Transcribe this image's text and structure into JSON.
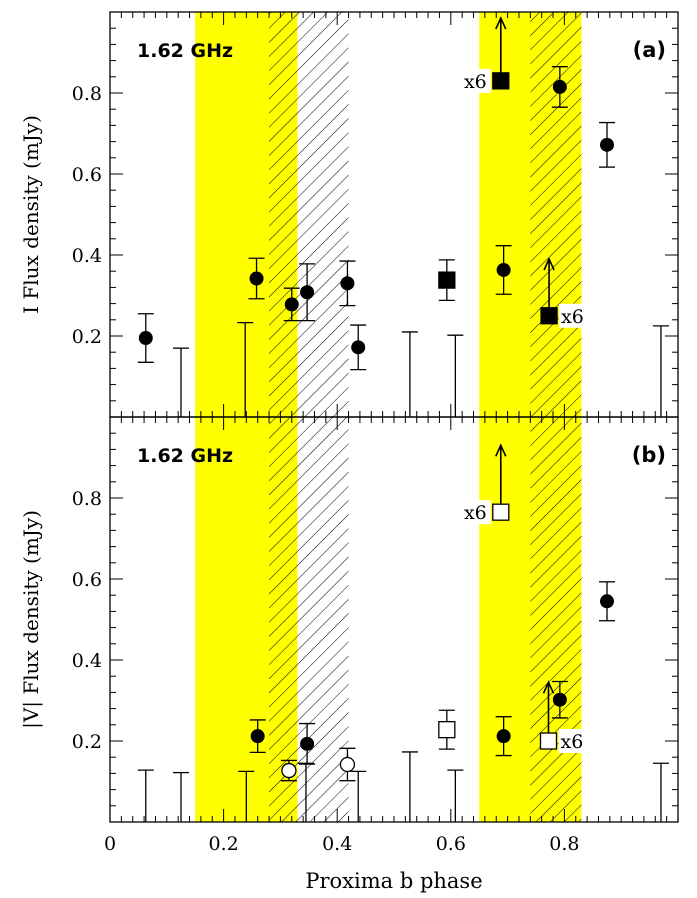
{
  "chart_data": {
    "type": "scatter",
    "xlabel": "Proxima b phase",
    "xlim": [
      0,
      1
    ],
    "x_ticks": [
      "0",
      "0.2",
      "0.4",
      "0.6",
      "0.8"
    ],
    "x_tick_values": [
      0,
      0.2,
      0.4,
      0.6,
      0.8
    ],
    "shaded_bands": [
      {
        "style": "yellow",
        "color": "#ffff00",
        "from": 0.15,
        "to": 0.33
      },
      {
        "style": "hatched",
        "from": 0.28,
        "to": 0.42
      },
      {
        "style": "yellow",
        "color": "#ffff00",
        "from": 0.65,
        "to": 0.83
      },
      {
        "style": "hatched",
        "from": 0.74,
        "to": 0.83
      }
    ],
    "panels": [
      {
        "id": "a",
        "label": "(a)",
        "frequency_label": "1.62 GHz",
        "ylabel": "I Flux density (mJy)",
        "ylim": [
          0,
          1
        ],
        "y_ticks": [
          "0.2",
          "0.4",
          "0.6",
          "0.8"
        ],
        "y_tick_values": [
          0.2,
          0.4,
          0.6,
          0.8
        ],
        "detections": [
          {
            "x": 0.063,
            "y": 0.195,
            "err": 0.06
          },
          {
            "x": 0.258,
            "y": 0.342,
            "err": 0.05
          },
          {
            "x": 0.32,
            "y": 0.278,
            "err": 0.04
          },
          {
            "x": 0.347,
            "y": 0.308,
            "err": 0.07
          },
          {
            "x": 0.418,
            "y": 0.33,
            "err": 0.055
          },
          {
            "x": 0.437,
            "y": 0.172,
            "err": 0.055
          },
          {
            "x": 0.693,
            "y": 0.363,
            "err": 0.06
          },
          {
            "x": 0.792,
            "y": 0.815,
            "err": 0.05
          },
          {
            "x": 0.875,
            "y": 0.672,
            "err": 0.055
          }
        ],
        "squares": [
          {
            "x": 0.593,
            "y": 0.338,
            "err": 0.05,
            "filled": true
          },
          {
            "x": 0.688,
            "y": 0.83,
            "filled": true,
            "arrow": true,
            "arrow_to": 0.985,
            "note": "x6",
            "note_side": "left"
          },
          {
            "x": 0.773,
            "y": 0.25,
            "filled": true,
            "arrow": true,
            "arrow_to": 0.39,
            "note": "x6",
            "note_side": "right"
          }
        ],
        "upper_limits": [
          {
            "x": 0.125,
            "y": 0.17
          },
          {
            "x": 0.238,
            "y": 0.233
          },
          {
            "x": 0.528,
            "y": 0.21
          },
          {
            "x": 0.608,
            "y": 0.202
          },
          {
            "x": 0.97,
            "y": 0.225
          }
        ]
      },
      {
        "id": "b",
        "label": "(b)",
        "frequency_label": "1.62 GHz",
        "ylabel": "|V| Flux density (mJy)",
        "ylim": [
          0,
          1
        ],
        "y_ticks": [
          "0.2",
          "0.4",
          "0.6",
          "0.8"
        ],
        "y_tick_values": [
          0.2,
          0.4,
          0.6,
          0.8
        ],
        "detections": [
          {
            "x": 0.26,
            "y": 0.212,
            "err": 0.04
          },
          {
            "x": 0.347,
            "y": 0.193,
            "err": 0.05
          },
          {
            "x": 0.693,
            "y": 0.212,
            "err": 0.048
          },
          {
            "x": 0.792,
            "y": 0.302,
            "err": 0.045
          },
          {
            "x": 0.875,
            "y": 0.545,
            "err": 0.048
          }
        ],
        "open_circles": [
          {
            "x": 0.315,
            "y": 0.127,
            "err": 0.025
          },
          {
            "x": 0.418,
            "y": 0.142,
            "err": 0.04
          }
        ],
        "squares": [
          {
            "x": 0.593,
            "y": 0.228,
            "err": 0.048,
            "filled": false
          },
          {
            "x": 0.688,
            "y": 0.765,
            "filled": false,
            "arrow": true,
            "arrow_to": 0.93,
            "note": "x6",
            "note_side": "left"
          },
          {
            "x": 0.772,
            "y": 0.2,
            "filled": false,
            "arrow": true,
            "arrow_to": 0.345,
            "note": "x6",
            "note_side": "right"
          }
        ],
        "upper_limits": [
          {
            "x": 0.063,
            "y": 0.128
          },
          {
            "x": 0.125,
            "y": 0.122
          },
          {
            "x": 0.24,
            "y": 0.125
          },
          {
            "x": 0.345,
            "y": 0.145
          },
          {
            "x": 0.437,
            "y": 0.125
          },
          {
            "x": 0.528,
            "y": 0.173
          },
          {
            "x": 0.608,
            "y": 0.128
          },
          {
            "x": 0.97,
            "y": 0.145
          }
        ]
      }
    ]
  }
}
